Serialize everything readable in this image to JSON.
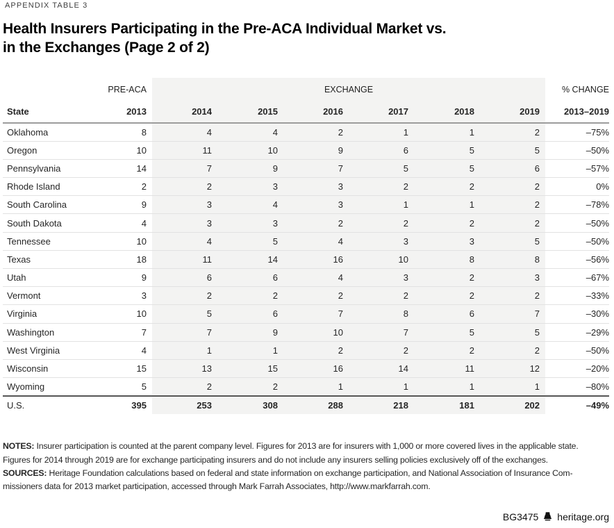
{
  "eyebrow": "APPENDIX TABLE 3",
  "title_line1": "Health Insurers Participating in the Pre-ACA Individual Market vs.",
  "title_line2": "in the Exchanges (Page 2 of 2)",
  "table": {
    "group_headers": {
      "pre_aca": "PRE-ACA",
      "exchange": "EXCHANGE",
      "pct_change": "% CHANGE"
    }
  },
  "chart_data": {
    "type": "table",
    "title": "Health Insurers Participating in the Pre-ACA Individual Market vs. in the Exchanges (Page 2 of 2)",
    "column_groups": [
      "PRE-ACA (2013)",
      "EXCHANGE (2014-2019)",
      "% CHANGE (2013-2019)"
    ],
    "columns": [
      "State",
      "2013",
      "2014",
      "2015",
      "2016",
      "2017",
      "2018",
      "2019",
      "2013–2019"
    ],
    "rows": [
      {
        "state": "Oklahoma",
        "values": [
          8,
          4,
          4,
          2,
          1,
          1,
          2,
          "–75%"
        ]
      },
      {
        "state": "Oregon",
        "values": [
          10,
          11,
          10,
          9,
          6,
          5,
          5,
          "–50%"
        ]
      },
      {
        "state": "Pennsylvania",
        "values": [
          14,
          7,
          9,
          7,
          5,
          5,
          6,
          "–57%"
        ]
      },
      {
        "state": "Rhode Island",
        "values": [
          2,
          2,
          3,
          3,
          2,
          2,
          2,
          "0%"
        ]
      },
      {
        "state": "South Carolina",
        "values": [
          9,
          3,
          4,
          3,
          1,
          1,
          2,
          "–78%"
        ]
      },
      {
        "state": "South Dakota",
        "values": [
          4,
          3,
          3,
          2,
          2,
          2,
          2,
          "–50%"
        ]
      },
      {
        "state": "Tennessee",
        "values": [
          10,
          4,
          5,
          4,
          3,
          3,
          5,
          "–50%"
        ]
      },
      {
        "state": "Texas",
        "values": [
          18,
          11,
          14,
          16,
          10,
          8,
          8,
          "–56%"
        ]
      },
      {
        "state": "Utah",
        "values": [
          9,
          6,
          6,
          4,
          3,
          2,
          3,
          "–67%"
        ]
      },
      {
        "state": "Vermont",
        "values": [
          3,
          2,
          2,
          2,
          2,
          2,
          2,
          "–33%"
        ]
      },
      {
        "state": "Virginia",
        "values": [
          10,
          5,
          6,
          7,
          8,
          6,
          7,
          "–30%"
        ]
      },
      {
        "state": "Washington",
        "values": [
          7,
          7,
          9,
          10,
          7,
          5,
          5,
          "–29%"
        ]
      },
      {
        "state": "West Virginia",
        "values": [
          4,
          1,
          1,
          2,
          2,
          2,
          2,
          "–50%"
        ]
      },
      {
        "state": "Wisconsin",
        "values": [
          15,
          13,
          15,
          16,
          14,
          11,
          12,
          "–20%"
        ]
      },
      {
        "state": "Wyoming",
        "values": [
          5,
          2,
          2,
          1,
          1,
          1,
          1,
          "–80%"
        ]
      }
    ],
    "total_row": [
      "U.S.",
      395,
      253,
      308,
      288,
      218,
      181,
      202,
      "–49%"
    ]
  },
  "notes": [
    {
      "label": "NOTES: ",
      "text": "Insurer participation is counted at the parent company level. Figures for 2013 are for insurers with 1,000 or more covered lives in the applicable state."
    },
    {
      "label": "",
      "text": "Figures for 2014 through 2019 are for exchange participating insurers and do not include any insurers selling policies exclusively off of the exchanges."
    },
    {
      "label": "SOURCES: ",
      "text": "Heritage Foundation calculations based on federal and state information on exchange participation, and National Association of Insurance Com-"
    },
    {
      "label": "",
      "text": "missioners data for 2013 market participation, accessed through Mark Farrah Associates, http://www.markfarrah.com."
    }
  ],
  "footer": {
    "id": "BG3475",
    "site": "heritage.org",
    "logo": "liberty-bell-icon"
  },
  "colors": {
    "band": "#f3f3f2",
    "row_line": "#e2e2e2",
    "header_line": "#9c9c9c",
    "total_line": "#565656",
    "text": "#262626"
  }
}
